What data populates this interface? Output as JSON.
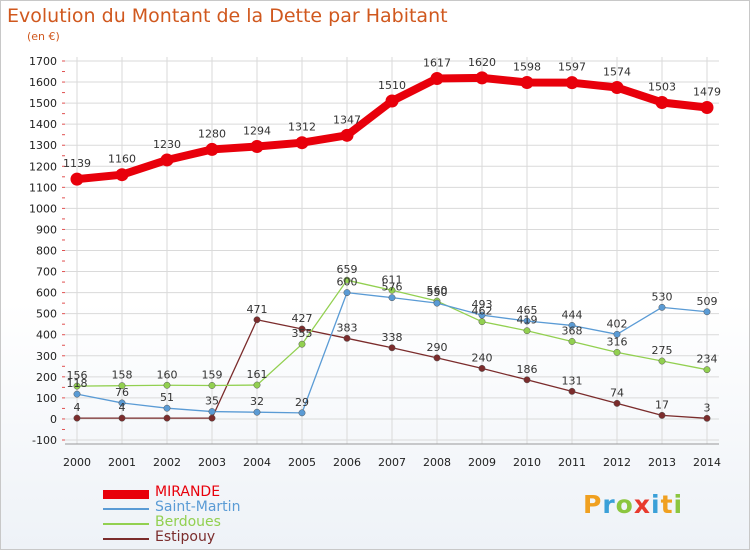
{
  "header": {
    "title": "Evolution du Montant de la Dette par Habitant",
    "subtitle": "(en €)"
  },
  "logo": {
    "letters": [
      "P",
      "r",
      "o",
      "x",
      "i",
      "t",
      "i"
    ],
    "colors": [
      "#f0a020",
      "#3aa0d8",
      "#8cc63f",
      "#e83a2e",
      "#3aa0d8",
      "#f0a020",
      "#8cc63f"
    ]
  },
  "chart_data": {
    "type": "line",
    "title": "Evolution du Montant de la Dette par Habitant",
    "subtitle": "(en €)",
    "xlabel": "",
    "ylabel": "",
    "x": [
      "2000",
      "2001",
      "2002",
      "2003",
      "2004",
      "2005",
      "2006",
      "2007",
      "2008",
      "2009",
      "2010",
      "2011",
      "2012",
      "2013",
      "2014"
    ],
    "ylim": [
      -100,
      1700
    ],
    "yticks": [
      -100,
      0,
      100,
      200,
      300,
      400,
      500,
      600,
      700,
      800,
      900,
      1000,
      1100,
      1200,
      1300,
      1400,
      1500,
      1600,
      1700
    ],
    "grid": true,
    "legend": "bottom-left",
    "series": [
      {
        "name": "MIRANDE",
        "color": "#e8000b",
        "values": [
          1139,
          1160,
          1230,
          1280,
          1294,
          1312,
          1347,
          1510,
          1617,
          1620,
          1598,
          1597,
          1574,
          1503,
          1479
        ],
        "labels": [
          "1139",
          "1160",
          "1230",
          "1280",
          "1294",
          "1312",
          "1347",
          "1510",
          "1617",
          "1620",
          "1598",
          "1597",
          "1574",
          "1503",
          "1479"
        ]
      },
      {
        "name": "Saint-Martin",
        "color": "#5a9bd5",
        "values": [
          118,
          76,
          51,
          35,
          32,
          29,
          600,
          576,
          550,
          493,
          465,
          444,
          402,
          530,
          509
        ],
        "labels": [
          "118",
          "76",
          "51",
          "35",
          "32",
          "29",
          "600",
          "576",
          "550",
          "493",
          "465",
          "444",
          "402",
          "530",
          "509"
        ]
      },
      {
        "name": "Berdoues",
        "color": "#92d050",
        "values": [
          156,
          158,
          160,
          159,
          161,
          355,
          659,
          611,
          560,
          462,
          419,
          368,
          316,
          275,
          234
        ],
        "labels": [
          "156",
          "158",
          "160",
          "159",
          "161",
          "355",
          "659",
          "611",
          "560",
          "462",
          "419",
          "368",
          "316",
          "275",
          "234"
        ]
      },
      {
        "name": "Estipouy",
        "color": "#7b2c2c",
        "values": [
          4,
          4,
          4,
          4,
          471,
          427,
          383,
          338,
          290,
          240,
          186,
          131,
          74,
          17,
          3
        ],
        "labels": [
          "4",
          "4",
          "",
          "",
          "471",
          "427",
          "383",
          "338",
          "290",
          "240",
          "186",
          "131",
          "74",
          "17",
          "3"
        ]
      }
    ]
  }
}
